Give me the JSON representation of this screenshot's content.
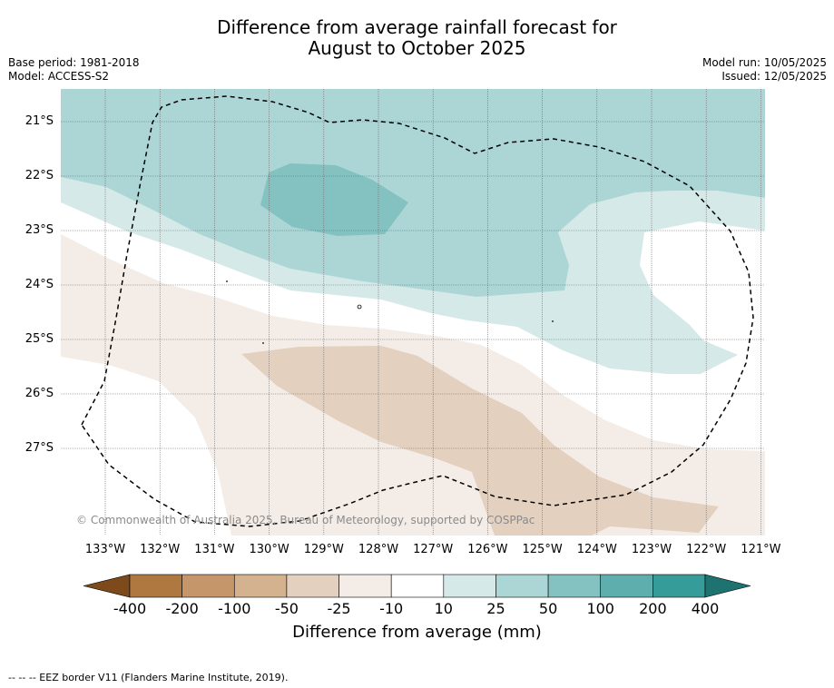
{
  "title_line1": "Difference from average rainfall forecast for",
  "title_line2": "August to October 2025",
  "base_period": "Base period: 1981-2018",
  "model": "Model: ACCESS-S2",
  "model_run": "Model run: 10/05/2025",
  "issued": "Issued: 12/05/2025",
  "lat_labels": [
    "21°S",
    "22°S",
    "23°S",
    "24°S",
    "25°S",
    "26°S",
    "27°S"
  ],
  "lon_labels": [
    "133°W",
    "132°W",
    "131°W",
    "130°W",
    "129°W",
    "128°W",
    "127°W",
    "126°W",
    "125°W",
    "124°W",
    "123°W",
    "122°W",
    "121°W"
  ],
  "colorbar": {
    "title": "Difference from average (mm)",
    "tick_labels": [
      "-400",
      "-200",
      "-100",
      "-50",
      "-25",
      "-10",
      "10",
      "25",
      "50",
      "100",
      "200",
      "400"
    ],
    "colors": [
      "#7d4a1c",
      "#ae7840",
      "#c4966a",
      "#d5b28f",
      "#e3d0bf",
      "#f4ede7",
      "#ffffff",
      "#d5e9e8",
      "#acd6d5",
      "#84c2c1",
      "#5eaeae",
      "#369c9a",
      "#1e7370"
    ]
  },
  "copyright": "© Commonwealth of Australia 2025, Bureau of Meteorology, supported by COSPPac",
  "footer": "-- -- -- EEZ border V11 (Flanders Marine Institute, 2019)."
}
